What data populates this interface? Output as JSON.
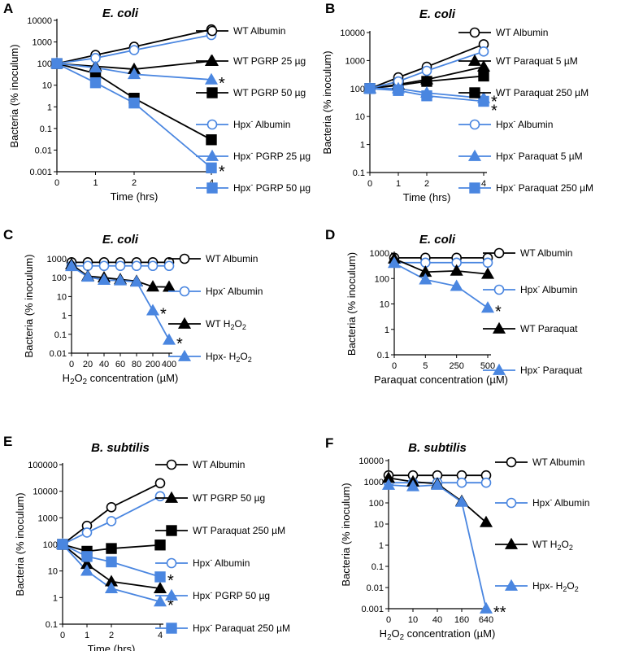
{
  "colors": {
    "wt": "#000000",
    "hpx": "#4a86e0"
  },
  "chart_data": [
    {
      "panel": "A",
      "type": "line",
      "title": "E. coli",
      "yscale": "log",
      "xlabel": "Time (hrs)",
      "ylabel": "Bacteria (% inoculum)",
      "xlim": [
        0,
        4
      ],
      "ylim": [
        0.001,
        10000
      ],
      "xticks": [
        0,
        1,
        2,
        4
      ],
      "xtick_labels": [
        "0",
        "1",
        "2",
        "4"
      ],
      "ytick_labels": [
        "0.001",
        "0.01",
        "0.1",
        "1",
        "10",
        "100",
        "1000",
        "10000"
      ],
      "series": [
        {
          "name": "WT Albumin",
          "strain": "wt",
          "marker": "circle",
          "fill": false,
          "x": [
            0,
            1,
            2,
            4
          ],
          "y": [
            100,
            250,
            600,
            3800
          ]
        },
        {
          "name": "WT PGRP 25 µg",
          "strain": "wt",
          "marker": "triangle",
          "fill": true,
          "x": [
            0,
            1,
            2,
            4
          ],
          "y": [
            100,
            75,
            55,
            130
          ]
        },
        {
          "name": "WT PGRP 50 µg",
          "strain": "wt",
          "marker": "square",
          "fill": true,
          "x": [
            0,
            1,
            2,
            4
          ],
          "y": [
            100,
            35,
            2.5,
            0.03
          ]
        },
        {
          "name": "Hpx- Albumin",
          "strain": "hpx",
          "marker": "circle",
          "fill": false,
          "x": [
            0,
            1,
            2,
            4
          ],
          "y": [
            100,
            180,
            420,
            2100
          ]
        },
        {
          "name": "Hpx- PGRP 25 µg",
          "strain": "hpx",
          "marker": "triangle",
          "fill": true,
          "x": [
            0,
            1,
            2,
            4
          ],
          "y": [
            100,
            65,
            32,
            18
          ]
        },
        {
          "name": "Hpx- PGRP 50 µg",
          "strain": "hpx",
          "marker": "square",
          "fill": true,
          "x": [
            0,
            1,
            2,
            4
          ],
          "y": [
            100,
            13,
            1.5,
            0.0015
          ]
        }
      ],
      "annotations": [
        {
          "text": "*",
          "x": 4,
          "y": 18
        },
        {
          "text": "*",
          "x": 4,
          "y": 0.0015
        }
      ]
    },
    {
      "panel": "B",
      "type": "line",
      "title": "E. coli",
      "yscale": "log",
      "xlabel": "Time (hrs)",
      "ylabel": "Bacteria (% inoculum)",
      "xlim": [
        0,
        4
      ],
      "ylim": [
        0.1,
        10000
      ],
      "xticks": [
        0,
        1,
        2,
        4
      ],
      "xtick_labels": [
        "0",
        "1",
        "2",
        "4"
      ],
      "ytick_labels": [
        "0.1",
        "1",
        "10",
        "100",
        "1000",
        "10000"
      ],
      "series": [
        {
          "name": "WT Albumin",
          "strain": "wt",
          "marker": "circle",
          "fill": false,
          "x": [
            0,
            1,
            2,
            4
          ],
          "y": [
            100,
            250,
            600,
            3800
          ]
        },
        {
          "name": "WT Paraquat 5 µM",
          "strain": "wt",
          "marker": "triangle",
          "fill": true,
          "x": [
            0,
            1,
            2,
            4
          ],
          "y": [
            100,
            140,
            210,
            600
          ]
        },
        {
          "name": "WT Paraquat 250 µM",
          "strain": "wt",
          "marker": "square",
          "fill": true,
          "x": [
            0,
            1,
            2,
            4
          ],
          "y": [
            100,
            130,
            180,
            280
          ]
        },
        {
          "name": "Hpx- Albumin",
          "strain": "hpx",
          "marker": "circle",
          "fill": false,
          "x": [
            0,
            1,
            2,
            4
          ],
          "y": [
            100,
            180,
            430,
            2100
          ]
        },
        {
          "name": "Hpx- Paraquat 5 µM",
          "strain": "hpx",
          "marker": "triangle",
          "fill": true,
          "x": [
            0,
            1,
            2,
            4
          ],
          "y": [
            100,
            100,
            70,
            45
          ]
        },
        {
          "name": "Hpx- Paraquat 250 µM",
          "strain": "hpx",
          "marker": "square",
          "fill": true,
          "x": [
            0,
            1,
            2,
            4
          ],
          "y": [
            100,
            85,
            55,
            35
          ]
        }
      ],
      "annotations": [
        {
          "text": "*",
          "x": 4,
          "y": 45
        },
        {
          "text": "*",
          "x": 4,
          "y": 22
        }
      ]
    },
    {
      "panel": "C",
      "type": "line",
      "title": "E. coli",
      "yscale": "log",
      "xlabel": "H2O2 concentration (µM)",
      "ylabel": "Bacteria (% inoculum)",
      "xlim": [
        0,
        400
      ],
      "ylim": [
        0.01,
        1000
      ],
      "xticks": [
        0,
        20,
        40,
        60,
        80,
        200,
        400
      ],
      "xtick_labels": [
        "0",
        "20",
        "40",
        "60",
        "80",
        "200",
        "400"
      ],
      "ytick_labels": [
        "0.01",
        "0.1",
        "1",
        "10",
        "100",
        "1000"
      ],
      "series": [
        {
          "name": "WT Albumin",
          "strain": "wt",
          "marker": "circle",
          "fill": false,
          "x": [
            0,
            20,
            40,
            60,
            80,
            200,
            400
          ],
          "y": [
            650,
            650,
            650,
            650,
            650,
            650,
            650
          ]
        },
        {
          "name": "Hpx- Albumin",
          "strain": "hpx",
          "marker": "circle",
          "fill": false,
          "x": [
            0,
            20,
            40,
            60,
            80,
            200,
            400
          ],
          "y": [
            420,
            420,
            420,
            420,
            420,
            420,
            420
          ]
        },
        {
          "name": "WT H2O2",
          "strain": "wt",
          "marker": "triangle",
          "fill": true,
          "x": [
            0,
            20,
            40,
            60,
            80,
            200,
            400
          ],
          "y": [
            500,
            120,
            100,
            80,
            65,
            33,
            32
          ]
        },
        {
          "name": "Hpx- H2O2",
          "strain": "hpx",
          "marker": "triangle",
          "fill": true,
          "x": [
            0,
            20,
            40,
            60,
            80,
            200,
            400
          ],
          "y": [
            400,
            110,
            75,
            70,
            60,
            1.8,
            0.05
          ]
        }
      ],
      "annotations": [
        {
          "text": "*",
          "x": 200,
          "y": 1.8
        },
        {
          "text": "*",
          "x": 400,
          "y": 0.05
        }
      ]
    },
    {
      "panel": "D",
      "type": "line",
      "title": "E. coli",
      "yscale": "log",
      "xlabel": "Paraquat concentration (µM)",
      "ylabel": "Bacteria (% inoculum)",
      "xlim": [
        0,
        500
      ],
      "ylim": [
        0.1,
        1000
      ],
      "xticks": [
        0,
        5,
        250,
        500
      ],
      "xtick_labels": [
        "0",
        "5",
        "250",
        "500"
      ],
      "ytick_labels": [
        "0.1",
        "1",
        "10",
        "100",
        "1000"
      ],
      "series": [
        {
          "name": "WT Albumin",
          "strain": "wt",
          "marker": "circle",
          "fill": false,
          "x": [
            0,
            5,
            250,
            500
          ],
          "y": [
            650,
            650,
            650,
            650
          ]
        },
        {
          "name": "Hpx- Albumin",
          "strain": "hpx",
          "marker": "circle",
          "fill": false,
          "x": [
            0,
            5,
            250,
            500
          ],
          "y": [
            420,
            420,
            420,
            420
          ]
        },
        {
          "name": "WT Paraquat",
          "strain": "wt",
          "marker": "triangle",
          "fill": true,
          "x": [
            0,
            5,
            250,
            500
          ],
          "y": [
            600,
            180,
            200,
            150
          ]
        },
        {
          "name": "Hpx- Paraquat",
          "strain": "hpx",
          "marker": "triangle",
          "fill": true,
          "x": [
            0,
            5,
            250,
            500
          ],
          "y": [
            400,
            90,
            50,
            7
          ]
        }
      ],
      "annotations": [
        {
          "text": "*",
          "x": 500,
          "y": 7
        }
      ]
    },
    {
      "panel": "E",
      "type": "line",
      "title": "B. subtilis",
      "yscale": "log",
      "xlabel": "Time (hrs)",
      "ylabel": "Bacteria (% inoculum)",
      "xlim": [
        0,
        4
      ],
      "ylim": [
        0.1,
        100000
      ],
      "xticks": [
        0,
        1,
        2,
        4
      ],
      "xtick_labels": [
        "0",
        "1",
        "2",
        "4"
      ],
      "ytick_labels": [
        "0.1",
        "1",
        "10",
        "100",
        "1000",
        "10000",
        "100000"
      ],
      "series": [
        {
          "name": "WT Albumin",
          "strain": "wt",
          "marker": "circle",
          "fill": false,
          "x": [
            0,
            1,
            2,
            4
          ],
          "y": [
            100,
            500,
            2500,
            20000
          ]
        },
        {
          "name": "WT PGRP 50 µg",
          "strain": "wt",
          "marker": "triangle",
          "fill": true,
          "x": [
            0,
            1,
            2,
            4
          ],
          "y": [
            100,
            18,
            4,
            2.2
          ]
        },
        {
          "name": "WT Paraquat 250 µM",
          "strain": "wt",
          "marker": "square",
          "fill": true,
          "x": [
            0,
            1,
            2,
            4
          ],
          "y": [
            100,
            55,
            70,
            95
          ]
        },
        {
          "name": "Hpx- Albumin",
          "strain": "hpx",
          "marker": "circle",
          "fill": false,
          "x": [
            0,
            1,
            2,
            4
          ],
          "y": [
            100,
            280,
            750,
            6500
          ]
        },
        {
          "name": "Hpx- PGRP 50 µg",
          "strain": "hpx",
          "marker": "triangle",
          "fill": true,
          "x": [
            0,
            1,
            2,
            4
          ],
          "y": [
            100,
            10,
            2.2,
            0.7
          ]
        },
        {
          "name": "Hpx- Paraquat 250 µM",
          "strain": "hpx",
          "marker": "square",
          "fill": true,
          "x": [
            0,
            1,
            2,
            4
          ],
          "y": [
            100,
            35,
            22,
            6
          ]
        }
      ],
      "annotations": [
        {
          "text": "*",
          "x": 4,
          "y": 6
        },
        {
          "text": "*",
          "x": 4,
          "y": 0.7
        }
      ]
    },
    {
      "panel": "F",
      "type": "line",
      "title": "B. subtilis",
      "yscale": "log",
      "xlabel": "H2O2 concentration (µM)",
      "ylabel": "Bacteria (% inoculum)",
      "xlim": [
        0,
        640
      ],
      "ylim": [
        0.001,
        10000
      ],
      "xticks": [
        0,
        10,
        40,
        160,
        640
      ],
      "xtick_labels": [
        "0",
        "10",
        "40",
        "160",
        "640"
      ],
      "ytick_labels": [
        "0.001",
        "0.01",
        "0.1",
        "1",
        "10",
        "100",
        "1000",
        "10000"
      ],
      "series": [
        {
          "name": "WT Albumin",
          "strain": "wt",
          "marker": "circle",
          "fill": false,
          "x": [
            0,
            10,
            40,
            160,
            640
          ],
          "y": [
            2000,
            2000,
            2000,
            2000,
            2000
          ]
        },
        {
          "name": "Hpx- Albumin",
          "strain": "hpx",
          "marker": "circle",
          "fill": false,
          "x": [
            0,
            10,
            40,
            160,
            640
          ],
          "y": [
            900,
            900,
            900,
            900,
            900
          ]
        },
        {
          "name": "WT H2O2",
          "strain": "wt",
          "marker": "triangle",
          "fill": true,
          "x": [
            0,
            10,
            40,
            160,
            640
          ],
          "y": [
            1500,
            1000,
            800,
            120,
            12
          ]
        },
        {
          "name": "Hpx- H2O2",
          "strain": "hpx",
          "marker": "triangle",
          "fill": true,
          "x": [
            0,
            10,
            40,
            160,
            640
          ],
          "y": [
            700,
            600,
            700,
            110,
            0.001
          ]
        }
      ],
      "annotations": [
        {
          "text": "**",
          "x": 640,
          "y": 0.001
        }
      ]
    }
  ]
}
